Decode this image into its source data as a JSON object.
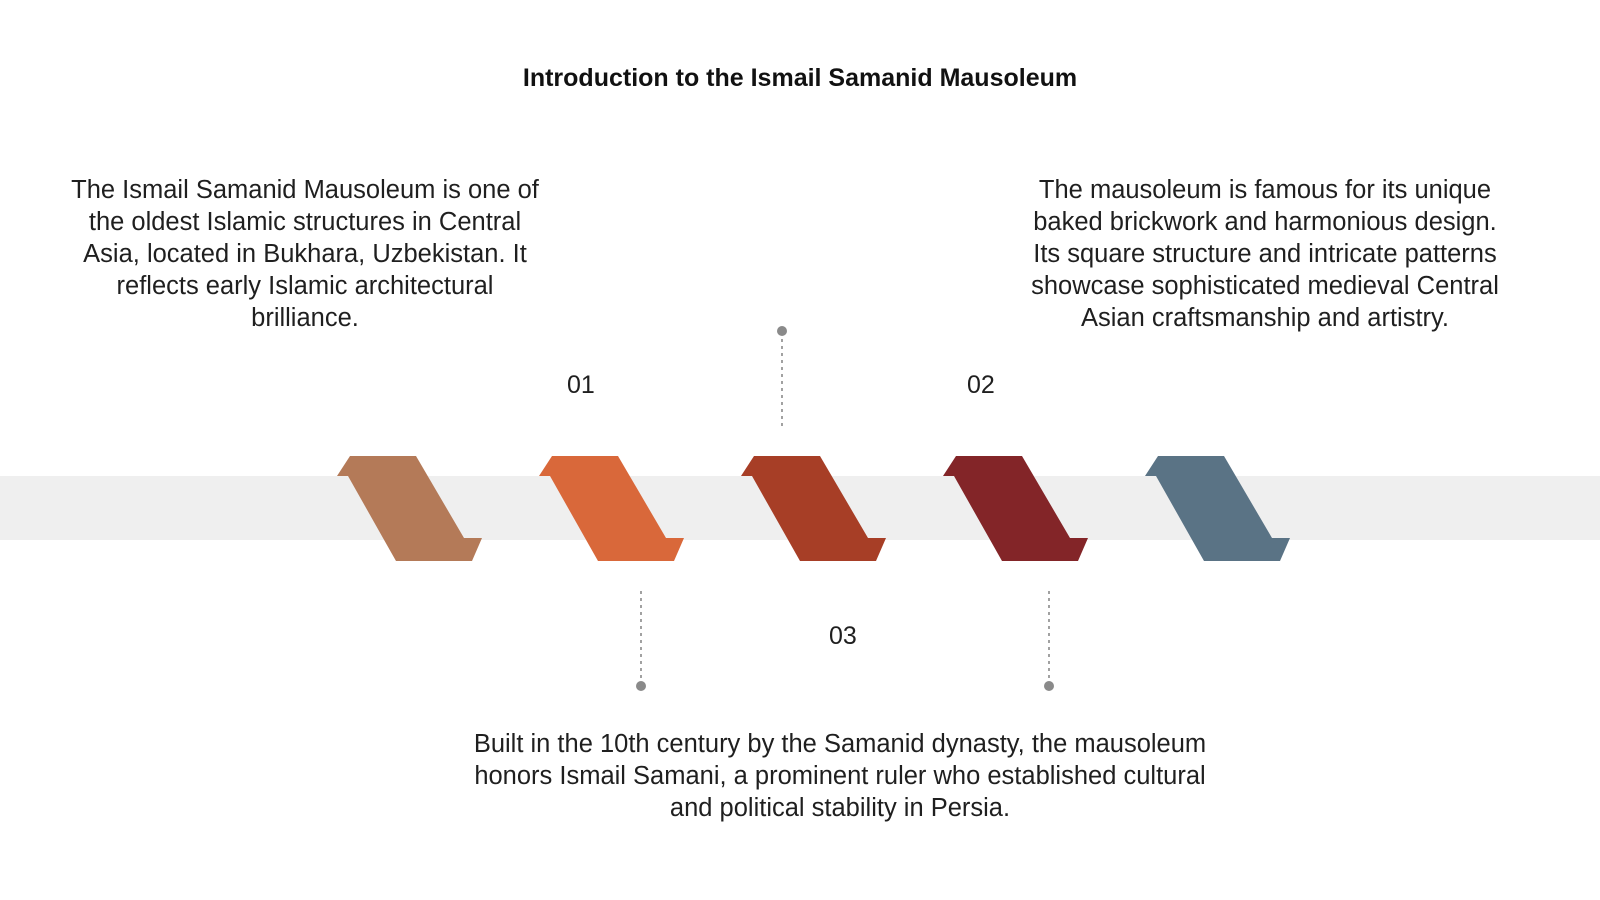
{
  "slide": {
    "title": "Introduction to the Ismail Samanid Mausoleum"
  },
  "steps": [
    {
      "number": "01",
      "text": "The Ismail Samanid Mausoleum is one of the oldest Islamic structures in Central Asia, located in Bukhara, Uzbekistan. It reflects early Islamic architectural brilliance."
    },
    {
      "number": "02",
      "text": "The mausoleum is famous for its unique baked brickwork and harmonious design. Its square structure and intricate patterns showcase sophisticated medieval Central Asian craftsmanship and artistry."
    },
    {
      "number": "03",
      "text": "Built in the 10th century by the Samanid dynasty, the mausoleum honors Ismail Samani, a prominent ruler who established cultural and political stability in Persia."
    }
  ],
  "colors": {
    "chevron_1": "#b47a58",
    "chevron_2": "#d9683a",
    "chevron_3": "#a73e26",
    "chevron_4": "#832528",
    "chevron_5": "#5a7385",
    "band": "#efefef",
    "connector": "#8a8a8a"
  }
}
